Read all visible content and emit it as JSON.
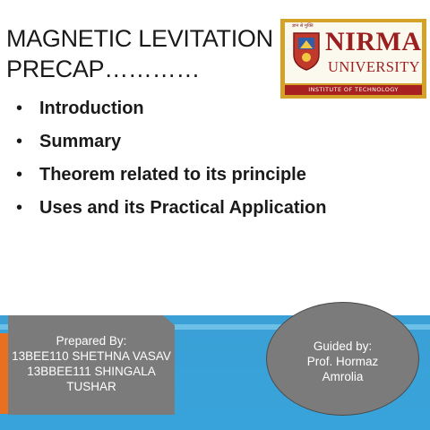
{
  "title": {
    "line1": "MAGNETIC LEVITATION",
    "line2": "PRECAP…………"
  },
  "logo": {
    "hindi_text": "ज्ञान से मुक्ति",
    "name": "NIRMA",
    "subtitle": "UNIVERSITY",
    "strip": "INSTITUTE   OF   TECHNOLOGY",
    "colors": {
      "gold": "#d4a229",
      "maroon": "#9a1f1f"
    }
  },
  "bullets": [
    {
      "marker": "•",
      "text": "Introduction"
    },
    {
      "marker": "•",
      "text": "Summary"
    },
    {
      "marker": "•",
      "text": "Theorem related to its principle"
    },
    {
      "marker": "•",
      "text": "Uses and its Practical Application"
    }
  ],
  "prepared": {
    "heading": "Prepared By:",
    "line1": "13BEE110 SHETHNA VASAV",
    "line2": "13BBEE111 SHINGALA",
    "line3": "TUSHAR"
  },
  "guided": {
    "heading": "Guided by:",
    "line1": "Prof. Hormaz",
    "line2": "Amrolia"
  },
  "colors": {
    "band_blue": "#3aa0d6",
    "band_orange": "#e8701f",
    "box_gray": "#7b7b7b"
  }
}
